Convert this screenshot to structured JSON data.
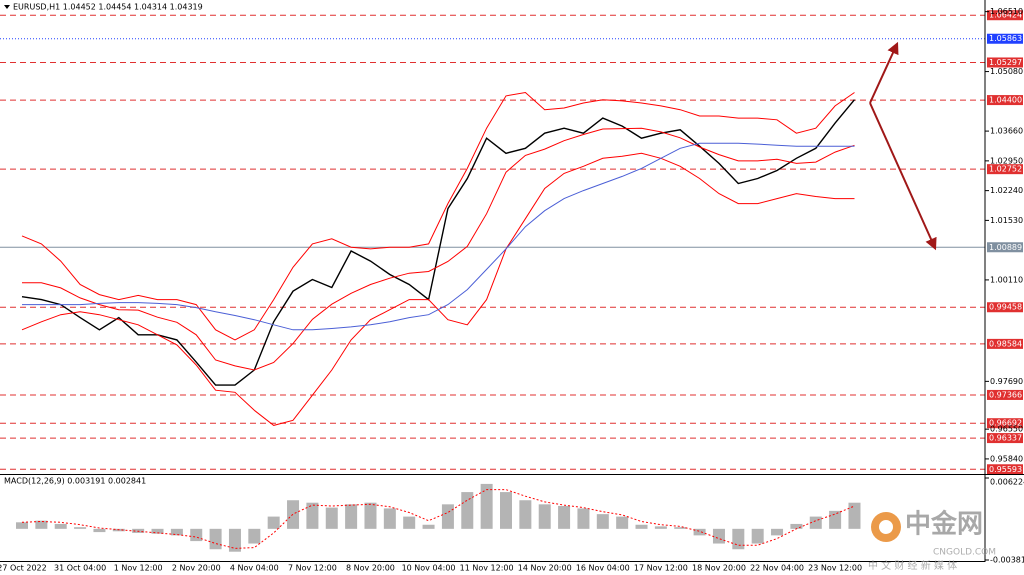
{
  "chart_data": [
    {
      "type": "line",
      "title": "EURUSD,H1  1.04452 1.04454 1.04314 1.04319",
      "categories": [
        "27 Oct 2022",
        null,
        null,
        "31 Oct 04:00",
        null,
        null,
        "1 Nov 12:00",
        null,
        null,
        "2 Nov 20:00",
        null,
        null,
        "4 Nov 04:00",
        null,
        null,
        "7 Nov 12:00",
        null,
        null,
        "8 Nov 20:00",
        null,
        null,
        "10 Nov 04:00",
        null,
        null,
        "11 Nov 12:00",
        null,
        null,
        "14 Nov 20:00",
        null,
        null,
        "16 Nov 04:00",
        null,
        null,
        "17 Nov 12:00",
        null,
        null,
        "18 Nov 20:00",
        null,
        null,
        "22 Nov 04:00",
        null,
        null,
        "23 Nov 12:00",
        null
      ],
      "series": [
        {
          "color": "#000000",
          "values": [
            0.9971,
            0.9964,
            0.9952,
            0.9921,
            0.9892,
            0.9921,
            0.988,
            0.988,
            0.9868,
            0.9815,
            0.976,
            0.976,
            0.9796,
            0.9911,
            0.9984,
            1.0012,
            0.9993,
            1.008,
            1.0056,
            1.0024,
            1.0,
            0.9964,
            1.0181,
            1.0253,
            1.0349,
            1.0313,
            1.0325,
            1.0361,
            1.0373,
            1.0361,
            1.0397,
            1.0378,
            1.0349,
            1.0361,
            1.0369,
            1.033,
            1.0289,
            1.0241,
            1.0253,
            1.0272,
            1.0301,
            1.0325,
            1.0385,
            1.0441
          ]
        },
        {
          "color": "#ff0000",
          "values": [
            1.0116,
            1.0097,
            1.0056,
            1.0,
            0.9976,
            0.9964,
            0.9974,
            0.9964,
            0.9964,
            0.9952,
            0.9892,
            0.9868,
            0.9892,
            0.9964,
            1.0041,
            1.0097,
            1.0109,
            1.0089,
            1.0085,
            1.0089,
            1.0089,
            1.0097,
            1.0193,
            1.0277,
            1.0373,
            1.045,
            1.0458,
            1.0417,
            1.0421,
            1.0433,
            1.0441,
            1.0438,
            1.0433,
            1.0426,
            1.0417,
            1.0402,
            1.0402,
            1.0397,
            1.0397,
            1.0393,
            1.0361,
            1.0373,
            1.0426,
            1.0458
          ]
        },
        {
          "color": "#ff0000",
          "values": [
            0.9892,
            0.9911,
            0.9928,
            0.9935,
            0.9928,
            0.9916,
            0.9904,
            0.988,
            0.9856,
            0.9808,
            0.9748,
            0.9743,
            0.97,
            0.9664,
            0.9676,
            0.9736,
            0.9796,
            0.9868,
            0.9916,
            0.994,
            0.9964,
            0.9964,
            0.9916,
            0.9904,
            0.9964,
            1.0085,
            1.0157,
            1.0229,
            1.0265,
            1.0282,
            1.0301,
            1.0306,
            1.0313,
            1.0301,
            1.0282,
            1.0253,
            1.0217,
            1.0193,
            1.0193,
            1.0205,
            1.0217,
            1.021,
            1.0205,
            1.0205
          ]
        },
        {
          "color": "#ff0000",
          "values": [
            1.0004,
            1.0004,
            0.9992,
            0.9968,
            0.9952,
            0.994,
            0.9939,
            0.9922,
            0.991,
            0.988,
            0.982,
            0.9806,
            0.9796,
            0.9814,
            0.9859,
            0.9917,
            0.9953,
            0.9979,
            1.0,
            1.0015,
            1.0027,
            1.0031,
            1.0055,
            1.0091,
            1.0169,
            1.0268,
            1.0308,
            1.0323,
            1.0343,
            1.0358,
            1.0371,
            1.0372,
            1.0373,
            1.0364,
            1.035,
            1.0328,
            1.031,
            1.0295,
            1.0295,
            1.0299,
            1.0289,
            1.0292,
            1.0316,
            1.0332
          ]
        },
        {
          "color": "#4b5fd6",
          "values": [
            0.9952,
            0.9952,
            0.9952,
            0.9952,
            0.9955,
            0.9957,
            0.9957,
            0.9955,
            0.9952,
            0.9945,
            0.9935,
            0.9926,
            0.9916,
            0.9904,
            0.9892,
            0.9892,
            0.9895,
            0.9899,
            0.9904,
            0.9911,
            0.9921,
            0.9928,
            0.9952,
            0.9988,
            1.0036,
            1.0085,
            1.0138,
            1.0176,
            1.0205,
            1.0224,
            1.0241,
            1.0258,
            1.0277,
            1.0301,
            1.0325,
            1.0337,
            1.0337,
            1.0337,
            1.0335,
            1.0332,
            1.033,
            1.033,
            1.033,
            1.033
          ]
        }
      ],
      "ylim": [
        0.95504,
        1.06668
      ],
      "yticks": [
        {
          "value": 1.0651,
          "label": "1.06510"
        },
        {
          "value": 1.0508,
          "label": "1.05080"
        },
        {
          "value": 1.0366,
          "label": "1.03660"
        },
        {
          "value": 1.0295,
          "label": "1.02950"
        },
        {
          "value": 1.0224,
          "label": "1.02240"
        },
        {
          "value": 1.0153,
          "label": "1.01530"
        },
        {
          "value": 1.0011,
          "label": "1.00110"
        },
        {
          "value": 0.9769,
          "label": "0.97690"
        },
        {
          "value": 0.9655,
          "label": "0.96550"
        },
        {
          "value": 0.9584,
          "label": "0.95840"
        }
      ],
      "levels": [
        {
          "value": 1.06424,
          "color": "#e03030"
        },
        {
          "value": 1.05863,
          "color": "#2040ff"
        },
        {
          "value": 1.05297,
          "color": "#e03030"
        },
        {
          "value": 1.044,
          "label": "1.04400",
          "color": "#e03030"
        },
        {
          "value": 1.02752,
          "color": "#e03030"
        },
        {
          "value": 1.00889,
          "color": "#8090a0"
        },
        {
          "value": 0.99458,
          "color": "#e03030"
        },
        {
          "value": 0.98584,
          "color": "#e03030"
        },
        {
          "value": 0.97366,
          "color": "#e03030"
        },
        {
          "value": 0.96692,
          "color": "#e03030"
        },
        {
          "value": 0.96337,
          "color": "#e03030"
        },
        {
          "value": 0.95593,
          "color": "#e03030"
        }
      ]
    },
    {
      "type": "macd",
      "title": "MACD(12,26,9) 0.003191 0.002841",
      "series": [
        {
          "color": "#b4b4b4",
          "values": [
            0.0008,
            0.001,
            0.0006,
            0.0002,
            -0.0004,
            -0.0003,
            -0.0005,
            -0.0006,
            -0.0008,
            -0.0015,
            -0.0025,
            -0.0028,
            -0.0018,
            0.0015,
            0.0035,
            0.0032,
            0.0026,
            0.003,
            0.0032,
            0.0025,
            0.0015,
            0.0005,
            0.003,
            0.0045,
            0.0055,
            0.0045,
            0.0035,
            0.003,
            0.0028,
            0.0025,
            0.0018,
            0.0015,
            0.0005,
            0.0003,
            0.0002,
            -0.0008,
            -0.0018,
            -0.0025,
            -0.0018,
            -0.0008,
            0.0006,
            0.0015,
            0.0022,
            0.0032
          ]
        },
        {
          "color": "#ff0000",
          "values": [
            0.0008,
            0.0009,
            0.0008,
            0.0005,
            0.0001,
            -0.0001,
            -0.0003,
            -0.0005,
            -0.0007,
            -0.001,
            -0.0018,
            -0.0024,
            -0.0023,
            -0.0005,
            0.0018,
            0.0029,
            0.0028,
            0.0029,
            0.003,
            0.0027,
            0.002,
            0.001,
            0.002,
            0.0035,
            0.0048,
            0.0048,
            0.004,
            0.0033,
            0.0029,
            0.0026,
            0.0021,
            0.0017,
            0.0009,
            0.0005,
            0.0003,
            -0.0003,
            -0.0012,
            -0.002,
            -0.002,
            -0.0012,
            0.0,
            0.001,
            0.0018,
            0.0028
          ]
        }
      ],
      "ylim": [
        -0.003816,
        0.006224
      ],
      "yticks": [
        0.006224,
        -0.003816
      ]
    }
  ],
  "watermark": {
    "brand": "中金网",
    "site": "CNGOLD.COM",
    "tagline": "中 文 财 经 新 媒 体"
  }
}
